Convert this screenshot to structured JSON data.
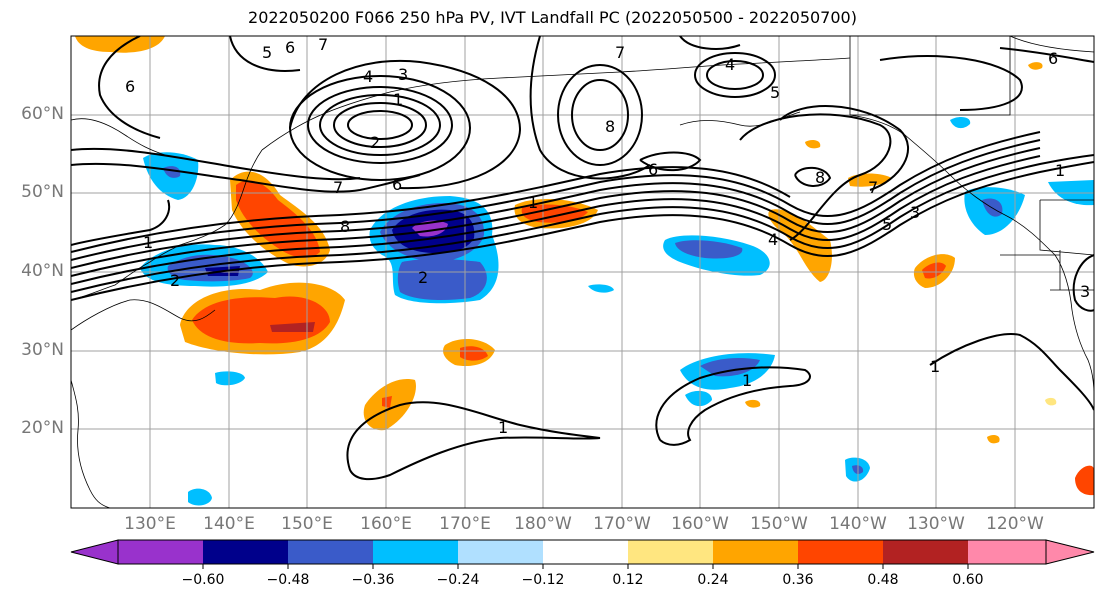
{
  "title": "2022050200 F066 250 hPa PV, IVT Landfall PC (2022050500 - 2022050700)",
  "lat_labels": [
    "60°N",
    "50°N",
    "40°N",
    "30°N",
    "20°N"
  ],
  "lon_labels": [
    "130°E",
    "140°E",
    "150°E",
    "160°E",
    "170°E",
    "180°W",
    "170°W",
    "160°W",
    "150°W",
    "140°W",
    "130°W",
    "120°W"
  ],
  "colorbar": {
    "tick_labels": [
      "−0.60",
      "−0.48",
      "−0.36",
      "−0.24",
      "−0.12",
      "0.12",
      "0.24",
      "0.36",
      "0.48",
      "0.60"
    ],
    "levels": [
      -0.6,
      -0.48,
      -0.36,
      -0.24,
      -0.12,
      0.12,
      0.24,
      0.36,
      0.48,
      0.6
    ],
    "colors": [
      "#9932CC",
      "#00008B",
      "#3A5BC9",
      "#00BFFF",
      "#B0E0FF",
      "#FFFFFF",
      "#FFE680",
      "#FFA500",
      "#FF4500",
      "#B22222",
      "#FF88AA"
    ],
    "extend": "both"
  },
  "contour_labels": {
    "l1": "1",
    "l2": "2",
    "l3": "3",
    "l4": "4",
    "l5": "5",
    "l6": "6",
    "l7": "7",
    "l8": "8"
  },
  "colors": {
    "grid": "#a0a0a0",
    "contour": "#000000",
    "axis_label": "#777777"
  }
}
